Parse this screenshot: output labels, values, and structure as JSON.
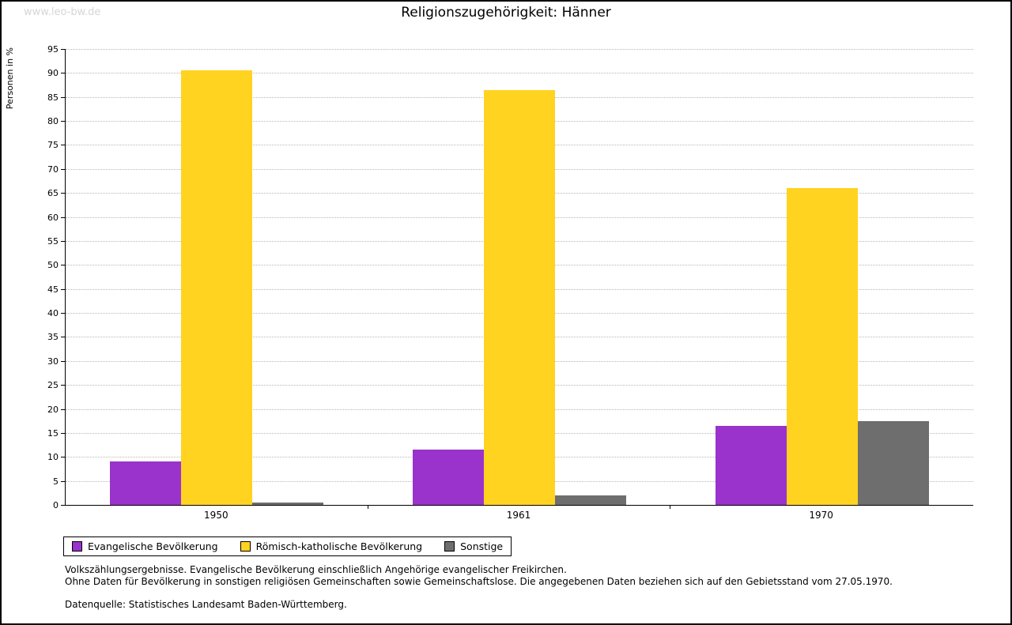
{
  "watermark": "www.leo-bw.de",
  "chart_data": {
    "type": "bar",
    "title": "Religionszugehörigkeit: Hänner",
    "ylabel": "Personen in %",
    "xlabel": "",
    "ylim": [
      0,
      95
    ],
    "ytick_step": 5,
    "grid": true,
    "legend_position": "bottom-left",
    "categories": [
      "1950",
      "1961",
      "1970"
    ],
    "series": [
      {
        "name": "Evangelische Bevölkerung",
        "color": "#9933cc",
        "values": [
          9,
          11.5,
          16.5
        ]
      },
      {
        "name": "Römisch-katholische Bevölkerung",
        "color": "#ffd320",
        "values": [
          90.5,
          86.5,
          66
        ]
      },
      {
        "name": "Sonstige",
        "color": "#6e6e6e",
        "values": [
          0.5,
          2,
          17.5
        ]
      }
    ]
  },
  "footnotes": {
    "line1": "Volkszählungsergebnisse. Evangelische Bevölkerung einschließlich Angehörige evangelischer Freikirchen.",
    "line2": "Ohne Daten für Bevölkerung in sonstigen religiösen Gemeinschaften sowie Gemeinschaftslose. Die angegebenen Daten beziehen sich auf den Gebietsstand vom 27.05.1970.",
    "source": "Datenquelle: Statistisches Landesamt Baden-Württemberg."
  }
}
